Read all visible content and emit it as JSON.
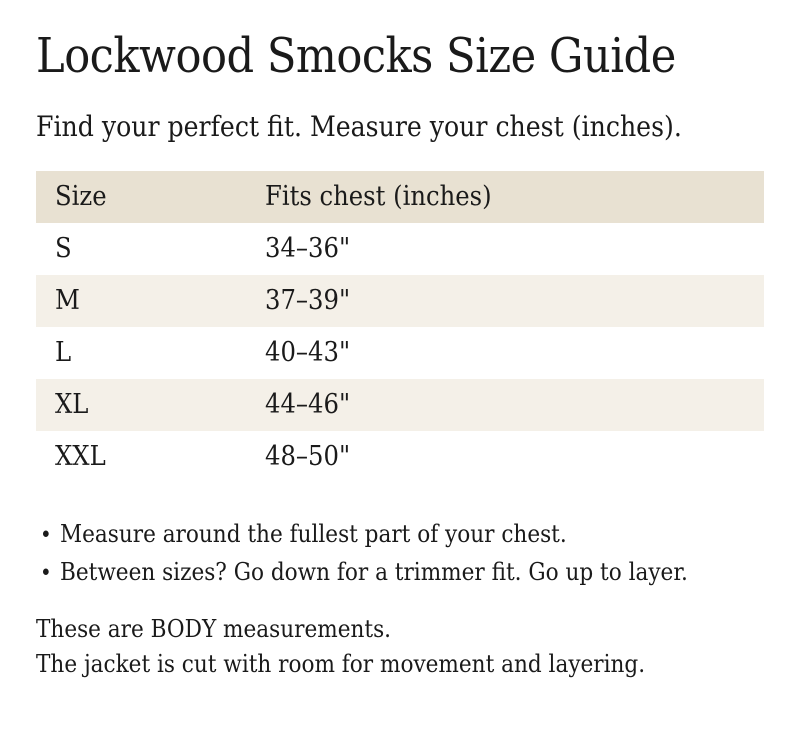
{
  "page": {
    "title": "Lockwood Smocks Size Guide",
    "subtitle": "Find your perfect fit. Measure your chest (inches)."
  },
  "table": {
    "headers": [
      "Size",
      "Fits chest (inches)"
    ],
    "rows": [
      {
        "size": "S",
        "chest": "34–36\""
      },
      {
        "size": "M",
        "chest": "37–39\""
      },
      {
        "size": "L",
        "chest": "40–43\""
      },
      {
        "size": "XL",
        "chest": "44–46\""
      },
      {
        "size": "XXL",
        "chest": "48–50\""
      }
    ]
  },
  "tips": [
    "Measure around the fullest part of your chest.",
    "Between sizes? Go down for a trimmer fit. Go up to layer."
  ],
  "notes": [
    "These are BODY measurements.",
    "The jacket is cut with room for movement and layering."
  ],
  "glyphs": {
    "bullet": "•"
  },
  "colors": {
    "header_bg": "#e8e1d2",
    "stripe_bg": "#f4f0e8",
    "text": "#1a1a1a",
    "background": "#ffffff"
  }
}
